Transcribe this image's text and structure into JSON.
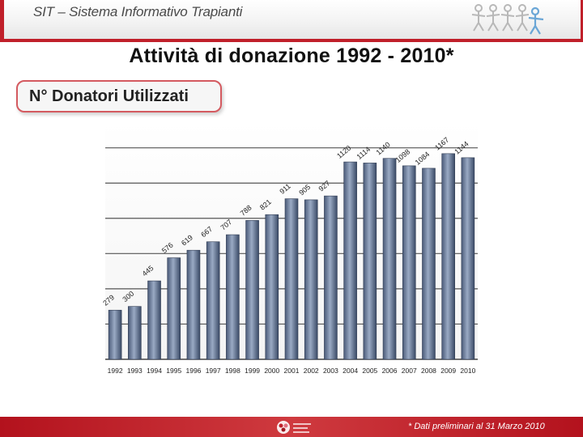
{
  "header": {
    "title": "SIT – Sistema Informativo Trapianti"
  },
  "page": {
    "title": "Attività di donazione 1992 - 2010*",
    "subtitle": "N° Donatori Utilizzati"
  },
  "footer": {
    "note": "* Dati preliminari al 31 Marzo 2010"
  },
  "colors": {
    "brand_red": "#c0202a",
    "bar_top": "#3a4a66",
    "bar_mid": "#8a9ab6",
    "axis": "#555555"
  },
  "icons": [
    "people-chain-logo",
    "network-logo"
  ],
  "chart_data": {
    "type": "bar",
    "title": "",
    "xlabel": "",
    "ylabel": "",
    "ylim": [
      0,
      1350
    ],
    "grid": true,
    "categories": [
      "1992",
      "1993",
      "1994",
      "1995",
      "1996",
      "1997",
      "1998",
      "1999",
      "2000",
      "2001",
      "2002",
      "2003",
      "2004",
      "2005",
      "2006",
      "2007",
      "2008",
      "2009",
      "2010"
    ],
    "values": [
      279,
      300,
      445,
      576,
      619,
      667,
      707,
      788,
      821,
      911,
      905,
      927,
      1120,
      1114,
      1140,
      1098,
      1084,
      1167,
      1144
    ],
    "data_labels": [
      "279",
      "300",
      "445",
      "576",
      "619",
      "667",
      "707",
      "788",
      "821",
      "911",
      "905",
      "927",
      "1120",
      "1114",
      "1140",
      "1098",
      "1084",
      "1167",
      "1144"
    ]
  }
}
